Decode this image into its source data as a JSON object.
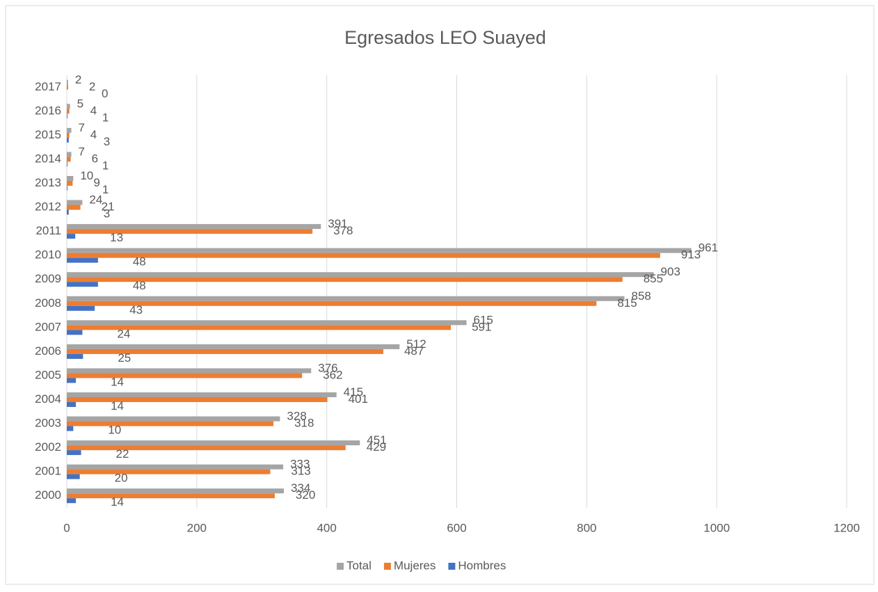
{
  "chart_data": {
    "type": "bar",
    "orientation": "horizontal",
    "title": "Egresados LEO Suayed",
    "categories": [
      "2000",
      "2001",
      "2002",
      "2003",
      "2004",
      "2005",
      "2006",
      "2007",
      "2008",
      "2009",
      "2010",
      "2011",
      "2012",
      "2013",
      "2014",
      "2015",
      "2016",
      "2017"
    ],
    "series": [
      {
        "name": "Total",
        "color": "#a5a5a5",
        "values": [
          334,
          333,
          451,
          328,
          415,
          376,
          512,
          615,
          858,
          903,
          961,
          391,
          24,
          10,
          7,
          7,
          5,
          2
        ]
      },
      {
        "name": "Mujeres",
        "color": "#ed7d31",
        "values": [
          320,
          313,
          429,
          318,
          401,
          362,
          487,
          591,
          815,
          855,
          913,
          378,
          21,
          9,
          6,
          4,
          4,
          2
        ]
      },
      {
        "name": "Hombres",
        "color": "#4472c4",
        "values": [
          14,
          20,
          22,
          10,
          14,
          14,
          25,
          24,
          43,
          48,
          48,
          13,
          3,
          1,
          1,
          3,
          1,
          0
        ]
      }
    ],
    "xlim": [
      0,
      1200
    ],
    "xticks": [
      0,
      200,
      400,
      600,
      800,
      1000,
      1200
    ],
    "grid": true,
    "legend": "bottom"
  }
}
